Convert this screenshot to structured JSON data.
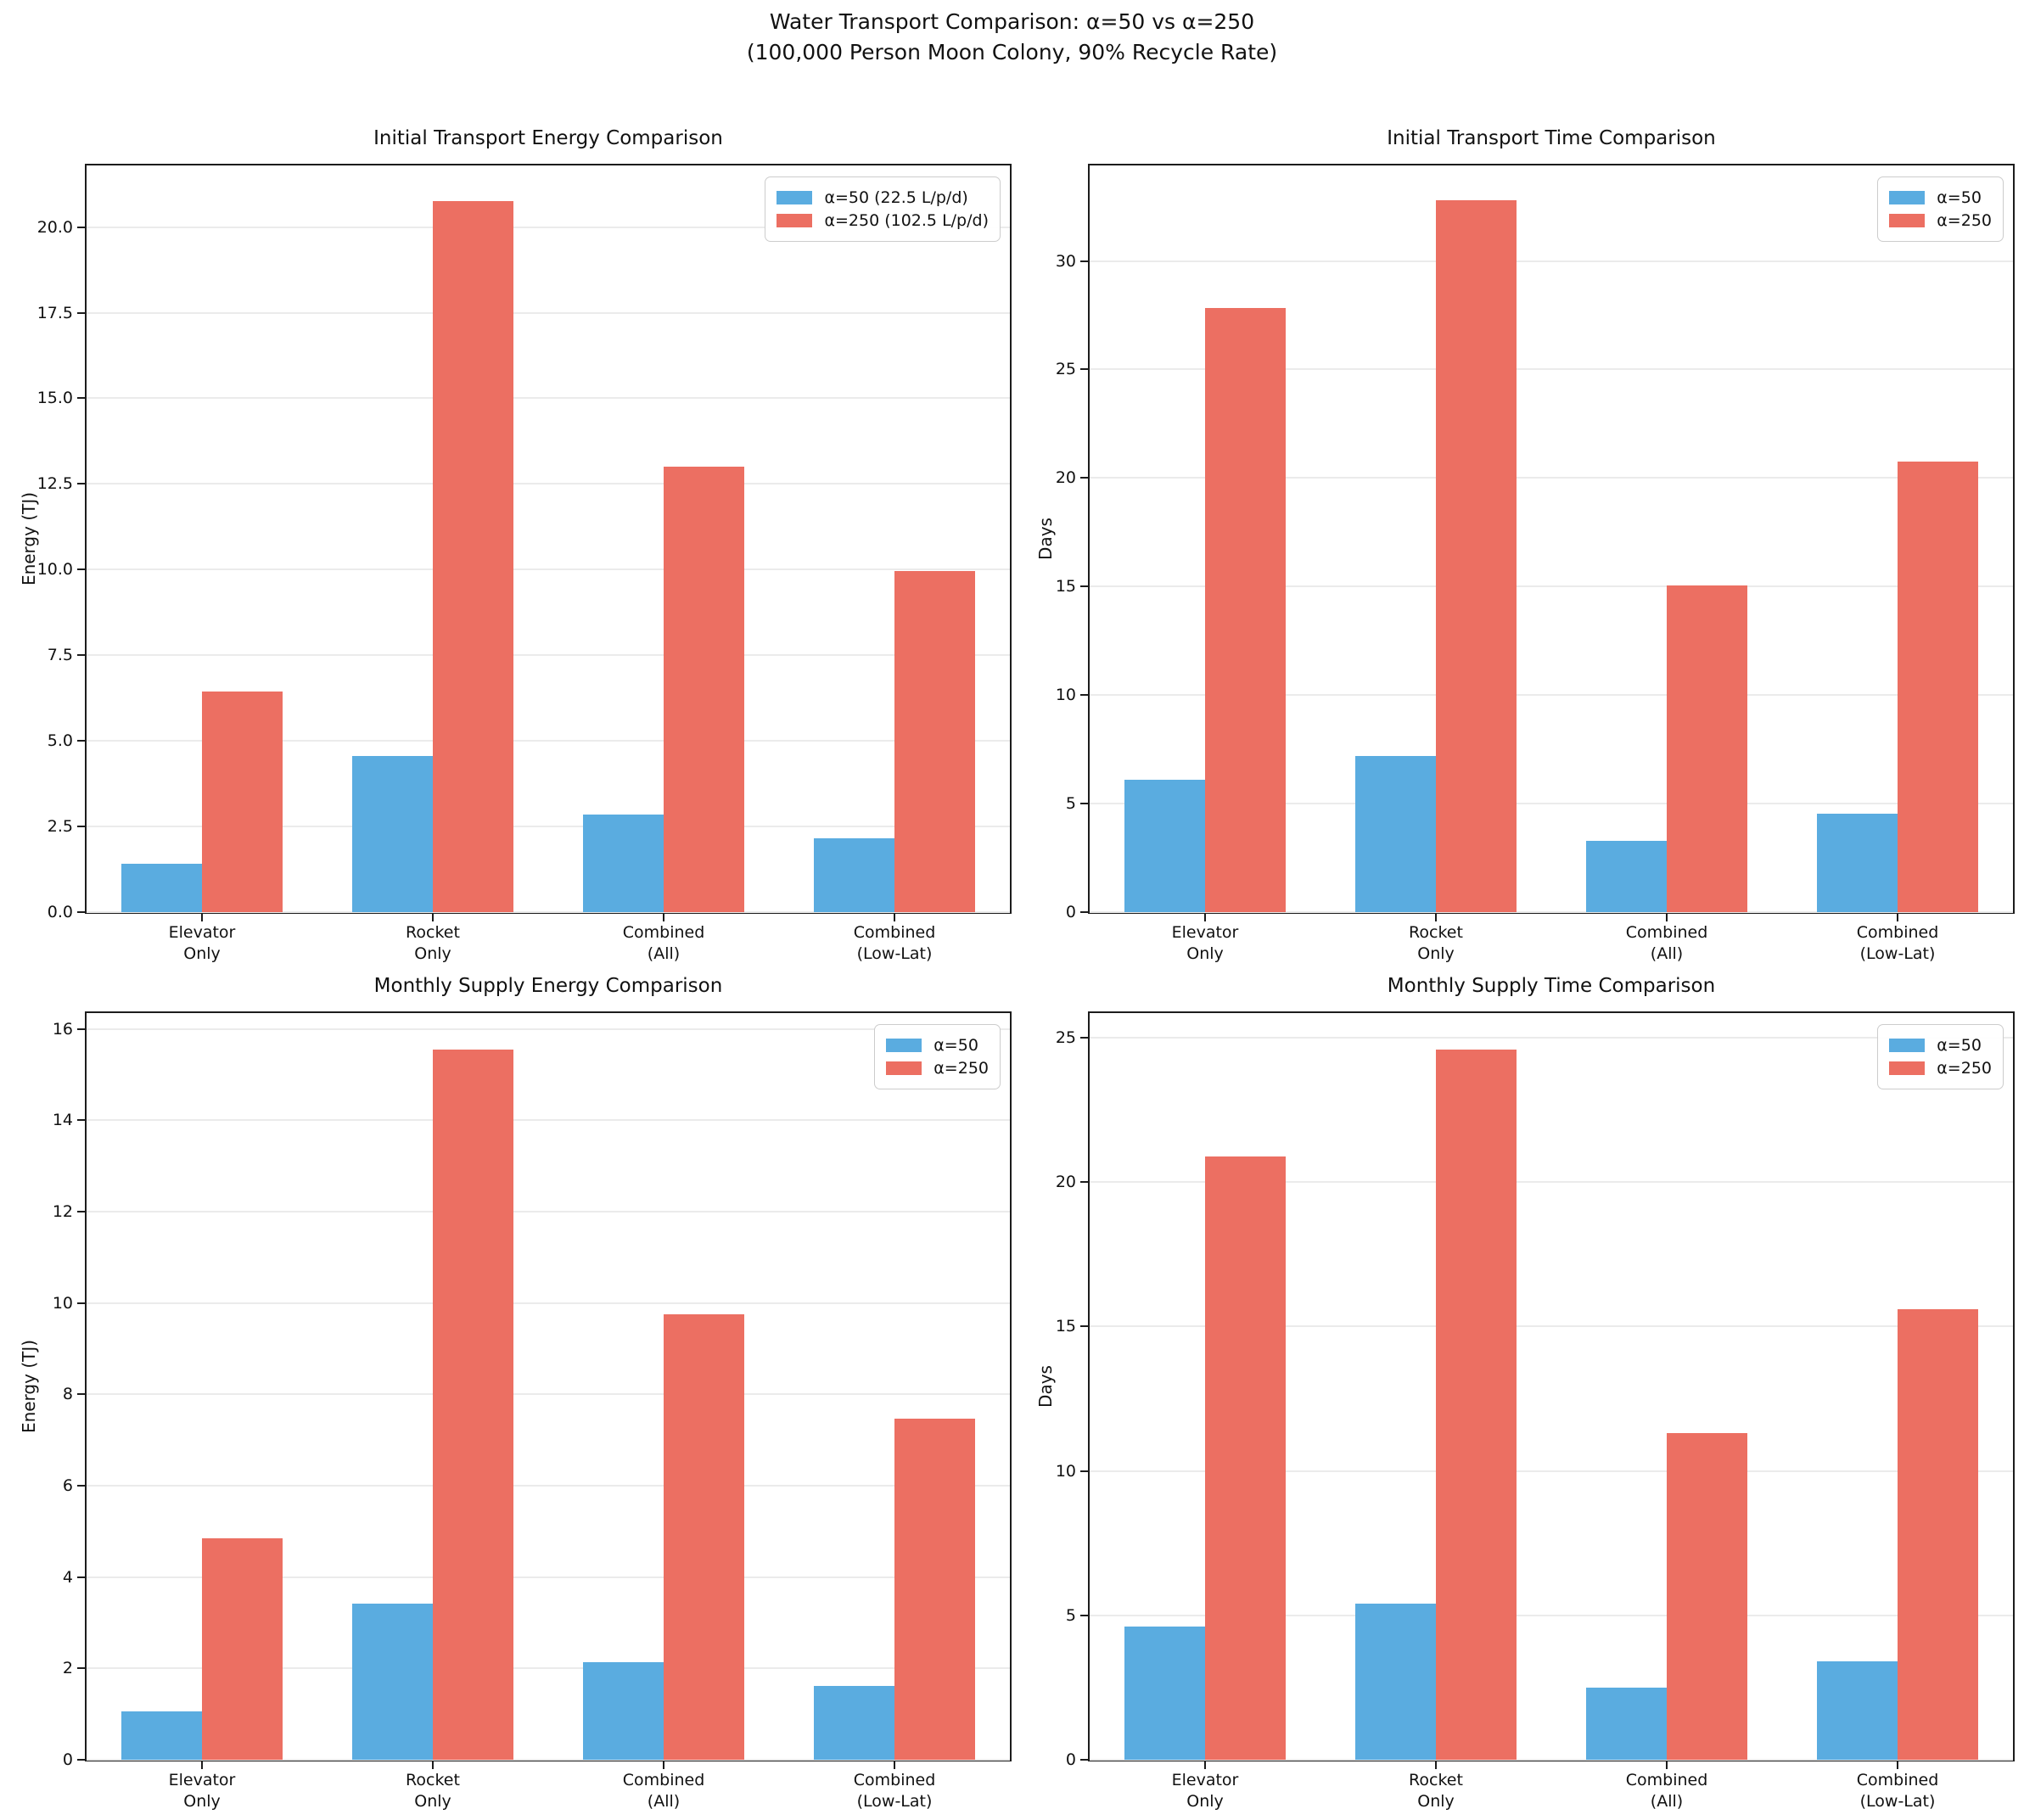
{
  "header": {
    "title_line1": "Water Transport Comparison: α=50 vs α=250",
    "title_line2": "(100,000 Person Moon Colony, 90% Recycle Rate)"
  },
  "colors": {
    "alpha50_blue": "#5AACE0",
    "alpha250_red": "#EC6F62",
    "grid": "#ebebeb",
    "spine": "#1c1c1c"
  },
  "chart_data": [
    {
      "id": "initial-transport-energy",
      "type": "bar",
      "title": "Initial Transport Energy Comparison",
      "ylabel": "Energy (TJ)",
      "xlabel": "",
      "categories": [
        [
          "Elevator",
          "Only"
        ],
        [
          "Rocket",
          "Only"
        ],
        [
          "Combined",
          "(All)"
        ],
        [
          "Combined",
          "(Low-Lat)"
        ]
      ],
      "series": [
        {
          "name": "α=50 (22.5 L/p/d)",
          "color": "#5AACE0",
          "values": [
            1.4,
            4.55,
            2.85,
            2.15
          ]
        },
        {
          "name": "α=250 (102.5 L/p/d)",
          "color": "#EC6F62",
          "values": [
            6.45,
            20.75,
            13.0,
            9.95
          ]
        }
      ],
      "ylim": [
        0,
        21.8
      ],
      "yticks": [
        0.0,
        2.5,
        5.0,
        7.5,
        10.0,
        12.5,
        15.0,
        17.5,
        20.0
      ],
      "ytick_decimals": 1,
      "grid": true,
      "legend_position": "upper right"
    },
    {
      "id": "initial-transport-time",
      "type": "bar",
      "title": "Initial Transport Time Comparison",
      "ylabel": "Days",
      "xlabel": "",
      "categories": [
        [
          "Elevator",
          "Only"
        ],
        [
          "Rocket",
          "Only"
        ],
        [
          "Combined",
          "(All)"
        ],
        [
          "Combined",
          "(Low-Lat)"
        ]
      ],
      "series": [
        {
          "name": "α=50",
          "color": "#5AACE0",
          "values": [
            6.1,
            7.2,
            3.3,
            4.55
          ]
        },
        {
          "name": "α=250",
          "color": "#EC6F62",
          "values": [
            27.85,
            32.8,
            15.05,
            20.75
          ]
        }
      ],
      "ylim": [
        0,
        34.4
      ],
      "yticks": [
        0,
        5,
        10,
        15,
        20,
        25,
        30
      ],
      "ytick_decimals": 0,
      "grid": true,
      "legend_position": "upper right"
    },
    {
      "id": "monthly-supply-energy",
      "type": "bar",
      "title": "Monthly Supply Energy Comparison",
      "ylabel": "Energy (TJ)",
      "xlabel": "",
      "categories": [
        [
          "Elevator",
          "Only"
        ],
        [
          "Rocket",
          "Only"
        ],
        [
          "Combined",
          "(All)"
        ],
        [
          "Combined",
          "(Low-Lat)"
        ]
      ],
      "series": [
        {
          "name": "α=50",
          "color": "#5AACE0",
          "values": [
            1.05,
            3.41,
            2.14,
            1.62
          ]
        },
        {
          "name": "α=250",
          "color": "#EC6F62",
          "values": [
            4.84,
            15.56,
            9.75,
            7.46
          ]
        }
      ],
      "ylim": [
        0,
        16.35
      ],
      "yticks": [
        0,
        2,
        4,
        6,
        8,
        10,
        12,
        14,
        16
      ],
      "ytick_decimals": 0,
      "grid": true,
      "legend_position": "upper right"
    },
    {
      "id": "monthly-supply-time",
      "type": "bar",
      "title": "Monthly Supply Time Comparison",
      "ylabel": "Days",
      "xlabel": "",
      "categories": [
        [
          "Elevator",
          "Only"
        ],
        [
          "Rocket",
          "Only"
        ],
        [
          "Combined",
          "(All)"
        ],
        [
          "Combined",
          "(Low-Lat)"
        ]
      ],
      "series": [
        {
          "name": "α=50",
          "color": "#5AACE0",
          "values": [
            4.6,
            5.4,
            2.5,
            3.4
          ]
        },
        {
          "name": "α=250",
          "color": "#EC6F62",
          "values": [
            20.9,
            24.6,
            11.3,
            15.6
          ]
        }
      ],
      "ylim": [
        0,
        25.85
      ],
      "yticks": [
        0,
        5,
        10,
        15,
        20,
        25
      ],
      "ytick_decimals": 0,
      "grid": true,
      "legend_position": "upper right"
    }
  ],
  "layout_note": ""
}
